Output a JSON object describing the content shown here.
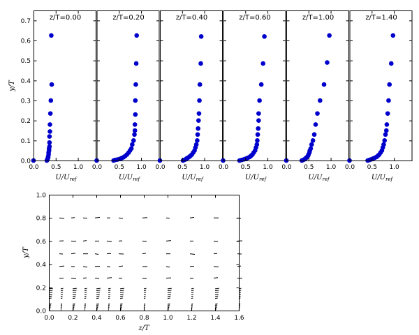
{
  "chart_data": [
    {
      "type": "scatter",
      "title": "z/T=0.00",
      "xlabel": "U/U_ref",
      "ylabel": "y/T",
      "xlim": [
        0,
        1.4
      ],
      "ylim": [
        0,
        0.75
      ],
      "xticks": [
        "0.0",
        "0.5",
        "1.0"
      ],
      "yticks": [
        "0.0",
        "0.1",
        "0.2",
        "0.3",
        "0.4",
        "0.5",
        "0.6",
        "0.7"
      ],
      "color": "#0000cc",
      "points": [
        [
          0.0,
          0.0
        ],
        [
          0.3,
          0.0
        ],
        [
          0.31,
          0.005
        ],
        [
          0.32,
          0.01
        ],
        [
          0.33,
          0.015
        ],
        [
          0.33,
          0.02
        ],
        [
          0.34,
          0.03
        ],
        [
          0.34,
          0.04
        ],
        [
          0.35,
          0.05
        ],
        [
          0.35,
          0.06
        ],
        [
          0.36,
          0.07
        ],
        [
          0.36,
          0.09
        ],
        [
          0.36,
          0.12
        ],
        [
          0.37,
          0.145
        ],
        [
          0.37,
          0.18
        ],
        [
          0.38,
          0.235
        ],
        [
          0.39,
          0.3
        ],
        [
          0.41,
          0.38
        ],
        [
          0.4,
          0.625
        ]
      ]
    },
    {
      "type": "scatter",
      "title": "z/T=0.20",
      "xlabel": "U/U_ref",
      "xlim": [
        0,
        1.4
      ],
      "ylim": [
        0,
        0.75
      ],
      "xticks": [
        "0.0",
        "0.5",
        "1.0"
      ],
      "color": "#0000cc",
      "points": [
        [
          0.0,
          0.0
        ],
        [
          0.38,
          0.0
        ],
        [
          0.42,
          0.003
        ],
        [
          0.47,
          0.005
        ],
        [
          0.52,
          0.008
        ],
        [
          0.56,
          0.012
        ],
        [
          0.6,
          0.016
        ],
        [
          0.64,
          0.022
        ],
        [
          0.68,
          0.03
        ],
        [
          0.72,
          0.04
        ],
        [
          0.75,
          0.05
        ],
        [
          0.78,
          0.06
        ],
        [
          0.8,
          0.08
        ],
        [
          0.83,
          0.1
        ],
        [
          0.85,
          0.13
        ],
        [
          0.86,
          0.15
        ],
        [
          0.86,
          0.18
        ],
        [
          0.87,
          0.23
        ],
        [
          0.87,
          0.3
        ],
        [
          0.88,
          0.38
        ],
        [
          0.89,
          0.485
        ],
        [
          0.9,
          0.625
        ]
      ]
    },
    {
      "type": "scatter",
      "title": "z/T=0.40",
      "xlabel": "U/U_ref",
      "xlim": [
        0,
        1.4
      ],
      "ylim": [
        0,
        0.75
      ],
      "xticks": [
        "0.0",
        "0.5",
        "1.0"
      ],
      "color": "#0000cc",
      "points": [
        [
          0.0,
          0.0
        ],
        [
          0.52,
          0.0
        ],
        [
          0.55,
          0.003
        ],
        [
          0.58,
          0.006
        ],
        [
          0.6,
          0.01
        ],
        [
          0.63,
          0.014
        ],
        [
          0.66,
          0.018
        ],
        [
          0.69,
          0.024
        ],
        [
          0.72,
          0.03
        ],
        [
          0.75,
          0.04
        ],
        [
          0.78,
          0.05
        ],
        [
          0.8,
          0.065
        ],
        [
          0.82,
          0.08
        ],
        [
          0.84,
          0.1
        ],
        [
          0.85,
          0.13
        ],
        [
          0.86,
          0.16
        ],
        [
          0.87,
          0.2
        ],
        [
          0.88,
          0.235
        ],
        [
          0.89,
          0.3
        ],
        [
          0.9,
          0.38
        ],
        [
          0.92,
          0.485
        ],
        [
          0.93,
          0.62
        ]
      ]
    },
    {
      "type": "scatter",
      "title": "z/T=0.60",
      "xlabel": "U/U_ref",
      "xlim": [
        0,
        1.4
      ],
      "ylim": [
        0,
        0.75
      ],
      "xticks": [
        "0.0",
        "0.5",
        "1.0"
      ],
      "color": "#0000cc",
      "points": [
        [
          0.0,
          0.0
        ],
        [
          0.37,
          0.0
        ],
        [
          0.42,
          0.003
        ],
        [
          0.47,
          0.006
        ],
        [
          0.52,
          0.01
        ],
        [
          0.56,
          0.014
        ],
        [
          0.6,
          0.018
        ],
        [
          0.63,
          0.024
        ],
        [
          0.66,
          0.03
        ],
        [
          0.69,
          0.04
        ],
        [
          0.72,
          0.05
        ],
        [
          0.74,
          0.065
        ],
        [
          0.76,
          0.08
        ],
        [
          0.77,
          0.1
        ],
        [
          0.78,
          0.13
        ],
        [
          0.79,
          0.16
        ],
        [
          0.8,
          0.2
        ],
        [
          0.8,
          0.235
        ],
        [
          0.82,
          0.3
        ],
        [
          0.86,
          0.38
        ],
        [
          0.9,
          0.485
        ],
        [
          0.93,
          0.62
        ]
      ]
    },
    {
      "type": "scatter",
      "title": "z/T=1.00",
      "xlabel": "U/U_ref",
      "xlim": [
        0,
        1.4
      ],
      "ylim": [
        0,
        0.75
      ],
      "xticks": [
        "0.0",
        "0.5",
        "1.0"
      ],
      "color": "#0000cc",
      "points": [
        [
          0.0,
          0.0
        ],
        [
          0.35,
          0.0
        ],
        [
          0.38,
          0.003
        ],
        [
          0.41,
          0.006
        ],
        [
          0.43,
          0.01
        ],
        [
          0.45,
          0.014
        ],
        [
          0.47,
          0.018
        ],
        [
          0.49,
          0.024
        ],
        [
          0.5,
          0.03
        ],
        [
          0.52,
          0.04
        ],
        [
          0.53,
          0.05
        ],
        [
          0.55,
          0.06
        ],
        [
          0.57,
          0.08
        ],
        [
          0.6,
          0.1
        ],
        [
          0.63,
          0.13
        ],
        [
          0.66,
          0.18
        ],
        [
          0.7,
          0.235
        ],
        [
          0.76,
          0.3
        ],
        [
          0.85,
          0.38
        ],
        [
          0.92,
          0.49
        ],
        [
          0.97,
          0.625
        ]
      ]
    },
    {
      "type": "scatter",
      "title": "z/T=1.40",
      "xlabel": "U/U_ref",
      "xlim": [
        0,
        1.4
      ],
      "ylim": [
        0,
        0.75
      ],
      "xticks": [
        "0.0",
        "0.5",
        "1.0"
      ],
      "color": "#0000cc",
      "points": [
        [
          0.0,
          0.0
        ],
        [
          0.41,
          0.0
        ],
        [
          0.45,
          0.003
        ],
        [
          0.49,
          0.006
        ],
        [
          0.53,
          0.01
        ],
        [
          0.57,
          0.014
        ],
        [
          0.61,
          0.018
        ],
        [
          0.64,
          0.024
        ],
        [
          0.67,
          0.03
        ],
        [
          0.7,
          0.04
        ],
        [
          0.73,
          0.05
        ],
        [
          0.75,
          0.065
        ],
        [
          0.77,
          0.08
        ],
        [
          0.79,
          0.1
        ],
        [
          0.81,
          0.13
        ],
        [
          0.83,
          0.15
        ],
        [
          0.84,
          0.18
        ],
        [
          0.86,
          0.235
        ],
        [
          0.88,
          0.3
        ],
        [
          0.9,
          0.38
        ],
        [
          0.94,
          0.485
        ],
        [
          0.98,
          0.625
        ]
      ]
    },
    {
      "type": "quiver",
      "xlabel": "z/T",
      "ylabel": "y/T",
      "xlim": [
        0,
        1.6
      ],
      "ylim": [
        0,
        1.0
      ],
      "xticks": [
        "0.0",
        "0.2",
        "0.4",
        "0.6",
        "0.8",
        "1.0",
        "1.2",
        "1.4",
        "1.6"
      ],
      "yticks": [
        "0.0",
        "0.2",
        "0.4",
        "0.6",
        "0.8",
        "1.0"
      ],
      "columns_z": [
        0.0,
        0.1,
        0.2,
        0.3,
        0.4,
        0.5,
        0.6,
        0.8,
        1.0,
        1.2,
        1.4,
        1.6
      ],
      "sparse_levels_y": [
        0.28,
        0.38,
        0.49,
        0.6,
        0.8
      ],
      "near_wall_max_y": 0.2
    }
  ]
}
